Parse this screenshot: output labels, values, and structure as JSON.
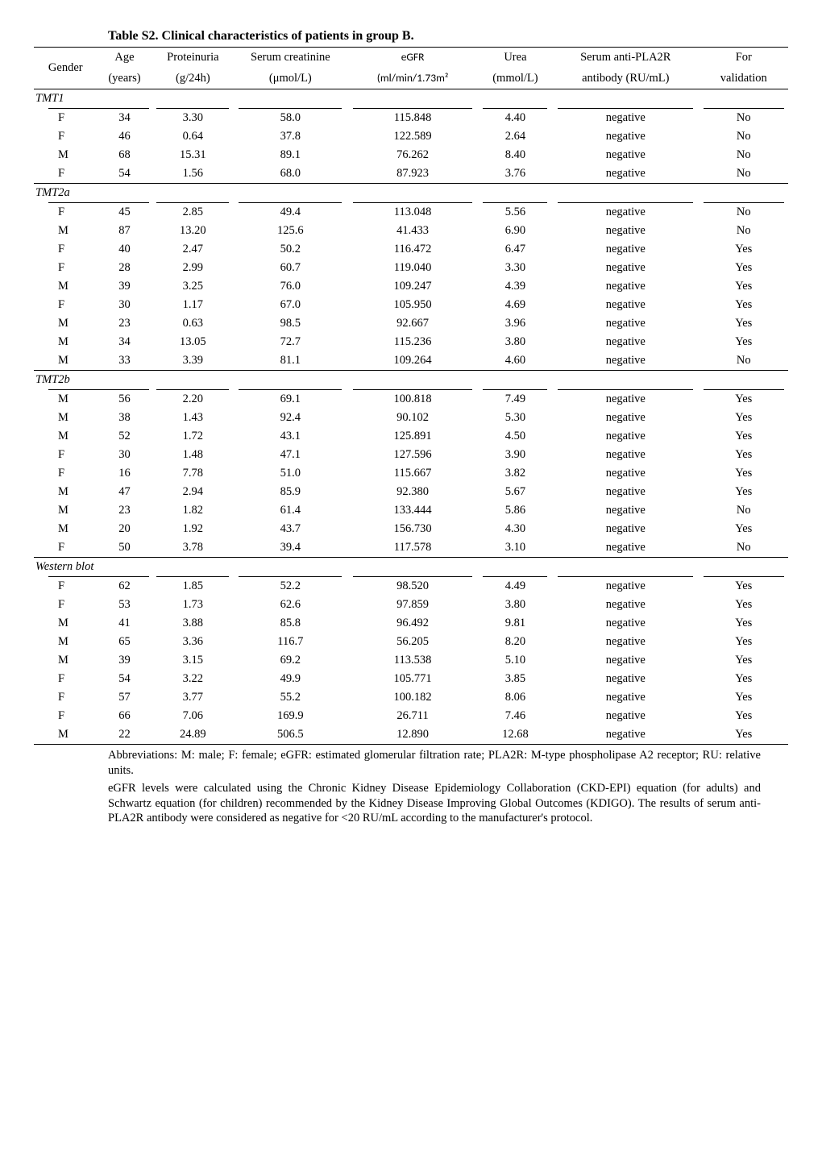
{
  "title": "Table S2. Clinical characteristics of patients in group B.",
  "columns": {
    "gender": {
      "label": "Gender",
      "sublabel": ""
    },
    "age": {
      "label": "Age",
      "sublabel": "(years)"
    },
    "prot": {
      "label": "Proteinuria",
      "sublabel": "(g/24h)"
    },
    "creat": {
      "label": "Serum creatinine",
      "sublabel": "(μmol/L)"
    },
    "egfr": {
      "label": "eGFR",
      "sublabel": "(ml/min/1.73m²"
    },
    "urea": {
      "label": "Urea",
      "sublabel": "(mmol/L)"
    },
    "pla2r": {
      "label": "Serum anti-PLA2R",
      "sublabel": "antibody (RU/mL)"
    },
    "valid": {
      "label": "For",
      "sublabel": "validation"
    }
  },
  "groups": [
    {
      "name": "TMT1",
      "rows": [
        [
          "F",
          "34",
          "3.30",
          "58.0",
          "115.848",
          "4.40",
          "negative",
          "No"
        ],
        [
          "F",
          "46",
          "0.64",
          "37.8",
          "122.589",
          "2.64",
          "negative",
          "No"
        ],
        [
          "M",
          "68",
          "15.31",
          "89.1",
          "76.262",
          "8.40",
          "negative",
          "No"
        ],
        [
          "F",
          "54",
          "1.56",
          "68.0",
          "87.923",
          "3.76",
          "negative",
          "No"
        ]
      ]
    },
    {
      "name": "TMT2a",
      "rows": [
        [
          "F",
          "45",
          "2.85",
          "49.4",
          "113.048",
          "5.56",
          "negative",
          "No"
        ],
        [
          "M",
          "87",
          "13.20",
          "125.6",
          "41.433",
          "6.90",
          "negative",
          "No"
        ],
        [
          "F",
          "40",
          "2.47",
          "50.2",
          "116.472",
          "6.47",
          "negative",
          "Yes"
        ],
        [
          "F",
          "28",
          "2.99",
          "60.7",
          "119.040",
          "3.30",
          "negative",
          "Yes"
        ],
        [
          "M",
          "39",
          "3.25",
          "76.0",
          "109.247",
          "4.39",
          "negative",
          "Yes"
        ],
        [
          "F",
          "30",
          "1.17",
          "67.0",
          "105.950",
          "4.69",
          "negative",
          "Yes"
        ],
        [
          "M",
          "23",
          "0.63",
          "98.5",
          "92.667",
          "3.96",
          "negative",
          "Yes"
        ],
        [
          "M",
          "34",
          "13.05",
          "72.7",
          "115.236",
          "3.80",
          "negative",
          "Yes"
        ],
        [
          "M",
          "33",
          "3.39",
          "81.1",
          "109.264",
          "4.60",
          "negative",
          "No"
        ]
      ]
    },
    {
      "name": "TMT2b",
      "rows": [
        [
          "M",
          "56",
          "2.20",
          "69.1",
          "100.818",
          "7.49",
          "negative",
          "Yes"
        ],
        [
          "M",
          "38",
          "1.43",
          "92.4",
          "90.102",
          "5.30",
          "negative",
          "Yes"
        ],
        [
          "M",
          "52",
          "1.72",
          "43.1",
          "125.891",
          "4.50",
          "negative",
          "Yes"
        ],
        [
          "F",
          "30",
          "1.48",
          "47.1",
          "127.596",
          "3.90",
          "negative",
          "Yes"
        ],
        [
          "F",
          "16",
          "7.78",
          "51.0",
          "115.667",
          "3.82",
          "negative",
          "Yes"
        ],
        [
          "M",
          "47",
          "2.94",
          "85.9",
          "92.380",
          "5.67",
          "negative",
          "Yes"
        ],
        [
          "M",
          "23",
          "1.82",
          "61.4",
          "133.444",
          "5.86",
          "negative",
          "No"
        ],
        [
          "M",
          "20",
          "1.92",
          "43.7",
          "156.730",
          "4.30",
          "negative",
          "Yes"
        ],
        [
          "F",
          "50",
          "3.78",
          "39.4",
          "117.578",
          "3.10",
          "negative",
          "No"
        ]
      ]
    },
    {
      "name": "Western blot",
      "rows": [
        [
          "F",
          "62",
          "1.85",
          "52.2",
          "98.520",
          "4.49",
          "negative",
          "Yes"
        ],
        [
          "F",
          "53",
          "1.73",
          "62.6",
          "97.859",
          "3.80",
          "negative",
          "Yes"
        ],
        [
          "M",
          "41",
          "3.88",
          "85.8",
          "96.492",
          "9.81",
          "negative",
          "Yes"
        ],
        [
          "M",
          "65",
          "3.36",
          "116.7",
          "56.205",
          "8.20",
          "negative",
          "Yes"
        ],
        [
          "M",
          "39",
          "3.15",
          "69.2",
          "113.538",
          "5.10",
          "negative",
          "Yes"
        ],
        [
          "F",
          "54",
          "3.22",
          "49.9",
          "105.771",
          "3.85",
          "negative",
          "Yes"
        ],
        [
          "F",
          "57",
          "3.77",
          "55.2",
          "100.182",
          "8.06",
          "negative",
          "Yes"
        ],
        [
          "F",
          "66",
          "7.06",
          "169.9",
          "26.711",
          "7.46",
          "negative",
          "Yes"
        ],
        [
          "M",
          "22",
          "24.89",
          "506.5",
          "12.890",
          "12.68",
          "negative",
          "Yes"
        ]
      ]
    }
  ],
  "footnotes": [
    "Abbreviations: M: male; F: female; eGFR: estimated glomerular filtration rate; PLA2R: M-type phospholipase A2 receptor; RU: relative units.",
    "eGFR levels were calculated using the Chronic Kidney Disease Epidemiology Collaboration (CKD-EPI) equation (for adults) and Schwartz equation (for children) recommended by the Kidney Disease Improving Global Outcomes (KDIGO). The results of serum anti-PLA2R antibody were considered as negative for <20 RU/mL according to the manufacturer's protocol."
  ],
  "style": {
    "short_rule_widths": [
      72,
      62,
      90,
      128,
      148,
      80,
      168,
      100
    ],
    "text_color": "#000000",
    "background": "#ffffff"
  }
}
